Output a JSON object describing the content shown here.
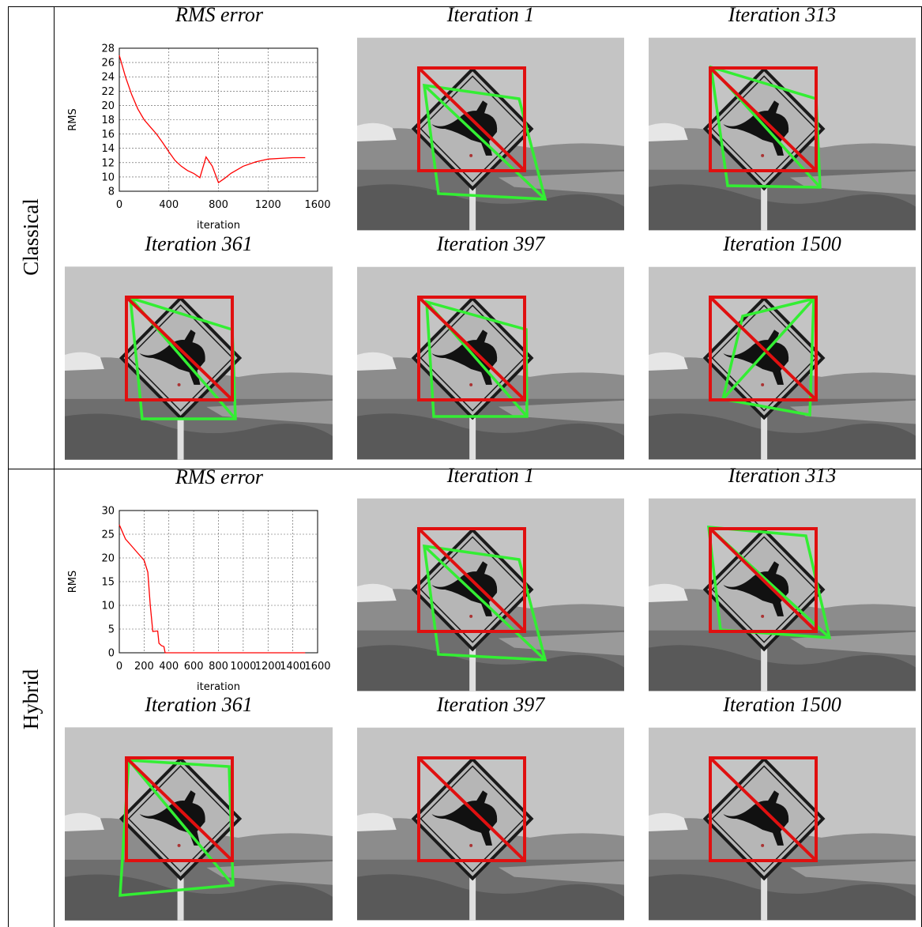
{
  "rows": [
    {
      "label": "Classical",
      "panels": [
        "Iteration 1",
        "Iteration 313",
        "Iteration 361",
        "Iteration 397",
        "Iteration 1500"
      ]
    },
    {
      "label": "Hybrid",
      "panels": [
        "Iteration 1",
        "Iteration 313",
        "Iteration 361",
        "Iteration 397",
        "Iteration 1500"
      ]
    }
  ],
  "chart_data": [
    {
      "type": "line",
      "title": "RMS error",
      "x_label": "iteration",
      "y_label": "RMS",
      "color": "#ff0000",
      "grid": true,
      "x": [
        0,
        50,
        100,
        150,
        200,
        250,
        300,
        350,
        400,
        450,
        500,
        550,
        600,
        650,
        700,
        750,
        800,
        850,
        900,
        1000,
        1100,
        1200,
        1300,
        1400,
        1500
      ],
      "values": [
        27,
        24,
        21.5,
        19.5,
        18,
        17,
        16,
        14.8,
        13.5,
        12.3,
        11.5,
        10.9,
        10.5,
        9.9,
        12.8,
        11.5,
        9.2,
        9.8,
        10.5,
        11.5,
        12.1,
        12.5,
        12.6,
        12.7,
        12.7
      ],
      "xlim": [
        0,
        1600
      ],
      "xticks": [
        0,
        400,
        800,
        1200,
        1600
      ],
      "ylim": [
        8,
        28
      ],
      "yticks": [
        8,
        10,
        12,
        14,
        16,
        18,
        20,
        22,
        24,
        26,
        28
      ]
    },
    {
      "type": "line",
      "title": "RMS error",
      "x_label": "iteration",
      "y_label": "RMS",
      "color": "#ff0000",
      "grid": true,
      "x": [
        0,
        50,
        100,
        150,
        200,
        230,
        250,
        270,
        310,
        320,
        340,
        360,
        370,
        1500
      ],
      "values": [
        27,
        24,
        22.5,
        21,
        19.5,
        17,
        10,
        4.5,
        4.6,
        2,
        1.5,
        1.3,
        0,
        0
      ],
      "xlim": [
        0,
        1600
      ],
      "xticks": [
        0,
        200,
        400,
        600,
        800,
        1000,
        1200,
        1400,
        1600
      ],
      "ylim": [
        0,
        30
      ],
      "yticks": [
        0,
        5,
        10,
        15,
        20,
        25,
        30
      ]
    }
  ]
}
